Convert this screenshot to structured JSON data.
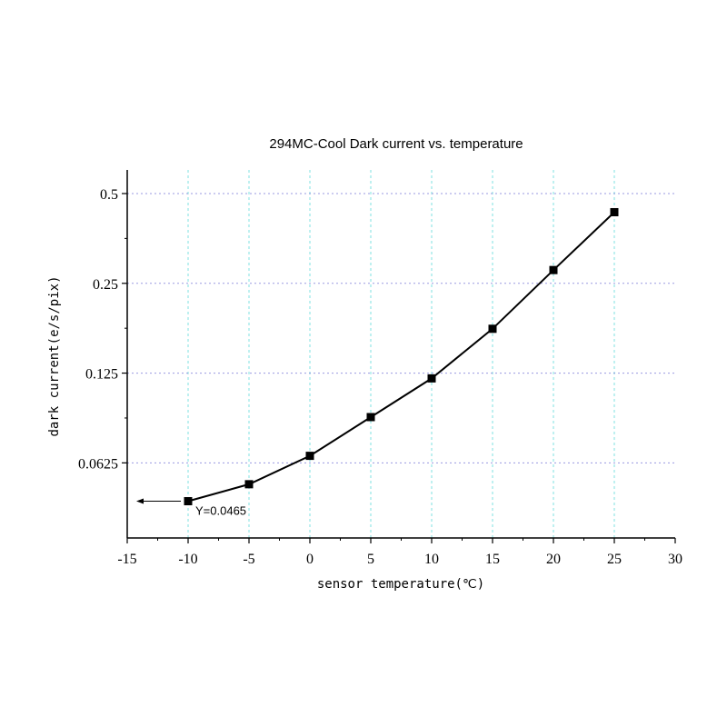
{
  "chart_data": {
    "type": "line",
    "title": "294MC-Cool Dark current vs. temperature",
    "xlabel": "sensor temperature(℃)",
    "ylabel": "dark current(e/s/pix)",
    "xlim": [
      -15,
      30
    ],
    "ylim": [
      0.035,
      0.6
    ],
    "y_scale": "log2",
    "x_ticks": [
      -15,
      -10,
      -5,
      0,
      5,
      10,
      15,
      20,
      25,
      30
    ],
    "x_tick_labels": [
      "-15",
      "-10",
      "-5",
      "0",
      "5",
      "10",
      "15",
      "20",
      "25",
      "30"
    ],
    "y_ticks": [
      0.0625,
      0.125,
      0.25,
      0.5
    ],
    "y_tick_labels": [
      "0.0625",
      "0.125",
      "0.25",
      "0.5"
    ],
    "grid": true,
    "legend": "none",
    "series": [
      {
        "x": [
          -10,
          -5,
          0,
          5,
          10,
          15,
          20,
          25
        ],
        "y": [
          0.0465,
          0.053,
          0.066,
          0.089,
          0.12,
          0.176,
          0.277,
          0.433
        ],
        "color": "#000000",
        "marker": "square"
      }
    ],
    "annotations": [
      {
        "text": "Y=0.0465",
        "x": -10,
        "y": 0.0465,
        "arrow": "left"
      }
    ],
    "grid_colors": {
      "vertical": "#7fe0e0",
      "horizontal": "#9a9ae0"
    }
  }
}
